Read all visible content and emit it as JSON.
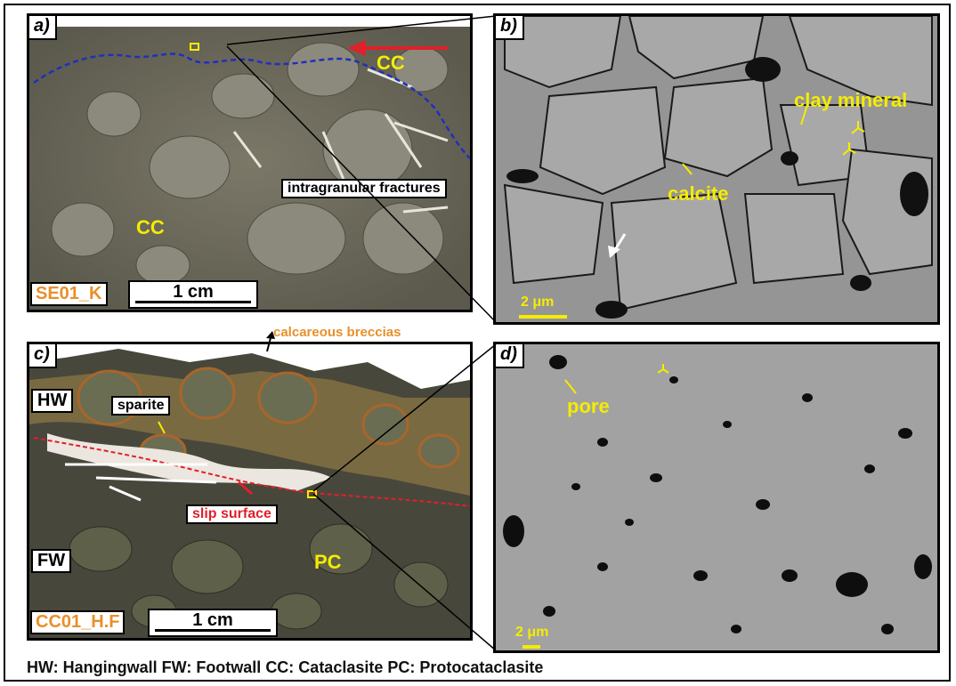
{
  "figure": {
    "panels": {
      "a": {
        "label": "a)",
        "labels": {
          "cc_top": "CC",
          "cc_center": "CC",
          "fractures": "intragranular fractures"
        },
        "sample_id": "SE01_K",
        "scale": "1 cm"
      },
      "b": {
        "label": "b)",
        "labels": {
          "clay": "clay mineral",
          "calcite": "calcite"
        },
        "scale": "2 μm"
      },
      "c": {
        "label": "c)",
        "labels": {
          "hw": "HW",
          "fw": "FW",
          "sparite": "sparite",
          "slip": "slip surface",
          "pc": "PC"
        },
        "sample_id": "CC01_H.F",
        "scale": "1 cm"
      },
      "d": {
        "label": "d)",
        "labels": {
          "pore": "pore"
        },
        "scale": "2 μm"
      }
    },
    "outside_label": "calcareous breccias",
    "legend": "HW: Hangingwall  FW: Footwall  CC: Cataclasite  PC: Protocataclasite",
    "colors": {
      "label_yellow": "#f5ec00",
      "sample_orange": "#e8902a",
      "slip_red": "#e0202a",
      "boundary_blue": "#1f2fbf"
    }
  }
}
